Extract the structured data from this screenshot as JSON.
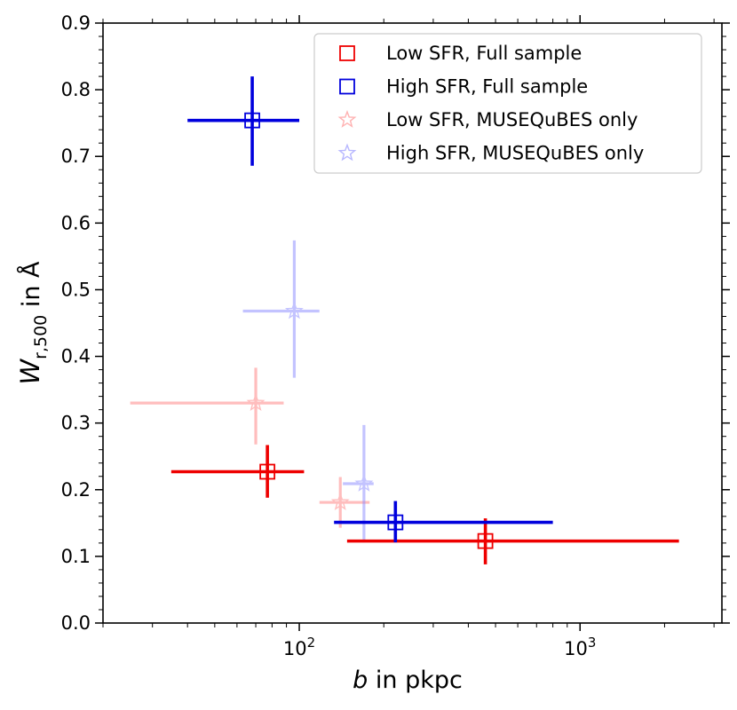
{
  "chart_data": {
    "type": "scatter",
    "x_scale": "log",
    "xlim": [
      20,
      3200
    ],
    "ylim": [
      0,
      0.9
    ],
    "xlabel": {
      "italic": "b",
      "rest": " in pkpc"
    },
    "ylabel": {
      "main": "W",
      "sub": "r,500",
      "rest": " in Å"
    },
    "x_major_ticks": [
      {
        "value": 100,
        "base": "10",
        "exp": "2"
      },
      {
        "value": 1000,
        "base": "10",
        "exp": "3"
      }
    ],
    "x_minor_ticks": [
      20,
      30,
      40,
      50,
      60,
      70,
      80,
      90,
      200,
      300,
      400,
      500,
      600,
      700,
      800,
      900,
      2000,
      3000
    ],
    "y_major_ticks": [
      {
        "value": 0.0,
        "label": "0.0"
      },
      {
        "value": 0.1,
        "label": "0.1"
      },
      {
        "value": 0.2,
        "label": "0.2"
      },
      {
        "value": 0.3,
        "label": "0.3"
      },
      {
        "value": 0.4,
        "label": "0.4"
      },
      {
        "value": 0.5,
        "label": "0.5"
      },
      {
        "value": 0.6,
        "label": "0.6"
      },
      {
        "value": 0.7,
        "label": "0.7"
      },
      {
        "value": 0.8,
        "label": "0.8"
      },
      {
        "value": 0.9,
        "label": "0.9"
      }
    ],
    "y_minor_step": 0.02,
    "series": [
      {
        "name": "Low SFR, Full sample",
        "color": "#ee0000",
        "marker": "square",
        "opacity": 1.0,
        "points": [
          {
            "x": 77,
            "y": 0.227,
            "xerr": [
              35,
              104
            ],
            "yerr": [
              0.188,
              0.267
            ]
          },
          {
            "x": 460,
            "y": 0.123,
            "xerr": [
              148,
              2250
            ],
            "yerr": [
              0.088,
              0.157
            ]
          }
        ]
      },
      {
        "name": "High SFR, Full sample",
        "color": "#0000dd",
        "marker": "square",
        "opacity": 1.0,
        "points": [
          {
            "x": 68,
            "y": 0.754,
            "xerr": [
              40,
              100
            ],
            "yerr": [
              0.686,
              0.82
            ]
          },
          {
            "x": 220,
            "y": 0.151,
            "xerr": [
              133,
              800
            ],
            "yerr": [
              0.121,
              0.183
            ]
          }
        ]
      },
      {
        "name": "Low SFR, MUSEQuBES only",
        "color": "#ff8888",
        "marker": "star",
        "opacity": 0.55,
        "points": [
          {
            "x": 70,
            "y": 0.33,
            "xerr": [
              25,
              88
            ],
            "yerr": [
              0.268,
              0.383
            ]
          },
          {
            "x": 140,
            "y": 0.181,
            "xerr": [
              118,
              178
            ],
            "yerr": [
              0.143,
              0.219
            ]
          }
        ]
      },
      {
        "name": "High SFR, MUSEQuBES only",
        "color": "#8888ff",
        "marker": "star",
        "opacity": 0.5,
        "points": [
          {
            "x": 96,
            "y": 0.468,
            "xerr": [
              63,
              118
            ],
            "yerr": [
              0.368,
              0.574
            ]
          },
          {
            "x": 170,
            "y": 0.209,
            "xerr": [
              143,
              184
            ],
            "yerr": [
              0.121,
              0.297
            ]
          }
        ]
      }
    ],
    "legend_position": "top-right"
  }
}
